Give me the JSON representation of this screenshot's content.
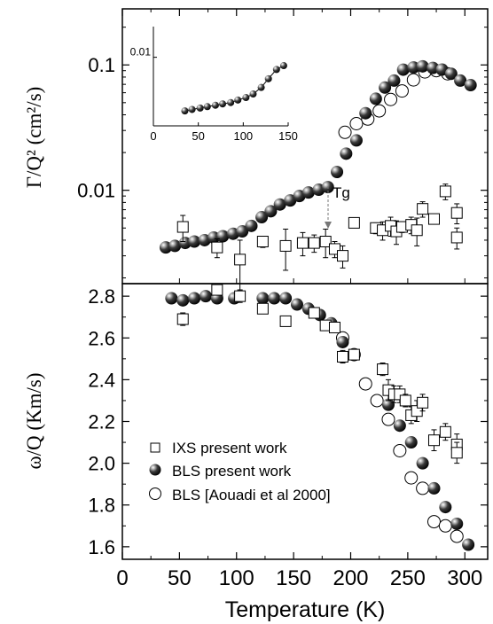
{
  "chart_data": [
    {
      "type": "scatter",
      "panel": "top",
      "ylabel": "Γ/Q² (cm²/s)",
      "yscale": "log",
      "ylim": [
        0.0018,
        0.28
      ],
      "xlim": [
        0,
        320
      ],
      "yticks": [
        0.01,
        0.1
      ],
      "ytick_labels": [
        "0.01",
        "0.1"
      ],
      "annotations": [
        {
          "text": "Tg",
          "x": 180,
          "y": 0.009
        }
      ],
      "series": [
        {
          "name": "IXS present work",
          "marker": "open-square",
          "x": [
            53,
            83,
            103,
            123,
            143,
            158,
            168,
            178,
            186,
            193,
            203,
            222,
            228,
            235,
            240,
            245,
            253,
            258,
            263,
            273,
            283,
            293,
            293
          ],
          "y": [
            0.0051,
            0.0035,
            0.0028,
            0.0039,
            0.0036,
            0.0038,
            0.0038,
            0.0039,
            0.0034,
            0.003,
            0.0055,
            0.005,
            0.0048,
            0.0052,
            0.0047,
            0.0051,
            0.0053,
            0.0048,
            0.0071,
            0.0059,
            0.0098,
            0.0066,
            0.0042
          ],
          "err": [
            0.0012,
            0.0006,
            0.0012,
            0.0004,
            0.0013,
            0.0008,
            0.0006,
            0.001,
            0.0005,
            0.0006,
            0.0003,
            0.0005,
            0.0008,
            0.0009,
            0.001,
            0.0005,
            0.0008,
            0.0012,
            0.001,
            0.0003,
            0.0014,
            0.0012,
            0.0008
          ]
        },
        {
          "name": "BLS present work",
          "marker": "filled-sphere",
          "x": [
            38,
            46,
            55,
            63,
            72,
            80,
            88,
            97,
            105,
            113,
            122,
            130,
            138,
            147,
            155,
            163,
            172,
            180,
            188,
            196,
            205,
            213,
            222,
            230,
            238,
            246,
            255,
            263,
            272,
            280,
            288,
            296,
            305
          ],
          "y": [
            0.0035,
            0.0036,
            0.0038,
            0.0039,
            0.004,
            0.0042,
            0.0043,
            0.0045,
            0.0047,
            0.0052,
            0.0061,
            0.0068,
            0.0077,
            0.0083,
            0.009,
            0.0096,
            0.0101,
            0.0106,
            0.014,
            0.0196,
            0.025,
            0.0412,
            0.0537,
            0.066,
            0.075,
            0.0917,
            0.0955,
            0.0974,
            0.0946,
            0.0918,
            0.085,
            0.075,
            0.069
          ]
        },
        {
          "name": "BLS [Aouadi et al 2000]",
          "marker": "open-circle",
          "x": [
            195,
            205,
            215,
            225,
            235,
            245,
            255,
            265,
            275,
            285
          ],
          "y": [
            0.029,
            0.034,
            0.037,
            0.043,
            0.053,
            0.062,
            0.076,
            0.088,
            0.09,
            0.085
          ]
        }
      ]
    },
    {
      "type": "line",
      "panel": "inset",
      "xlim": [
        0,
        150
      ],
      "xticks": [
        0,
        50,
        100,
        150
      ],
      "xtick_labels": [
        "0",
        "50",
        "100",
        "150"
      ],
      "yscale": "log",
      "ytick_labels": [
        "0.01"
      ],
      "series": [
        {
          "marker": "filled-sphere",
          "x": [
            35,
            43,
            52,
            60,
            69,
            77,
            86,
            94,
            103,
            111,
            120,
            128,
            137,
            145
          ],
          "y": [
            0.0044,
            0.0045,
            0.0046,
            0.0047,
            0.0048,
            0.0049,
            0.005,
            0.0052,
            0.0054,
            0.0057,
            0.0063,
            0.0072,
            0.0083,
            0.0088
          ]
        }
      ]
    },
    {
      "type": "scatter",
      "panel": "bottom",
      "xlabel": "Temperature (K)",
      "ylabel": "ω/Q (Km/s)",
      "xlim": [
        0,
        320
      ],
      "ylim": [
        1.54,
        2.86
      ],
      "xticks": [
        0,
        50,
        100,
        150,
        200,
        250,
        300
      ],
      "xtick_labels": [
        "0",
        "50",
        "100",
        "150",
        "200",
        "250",
        "300"
      ],
      "yticks": [
        1.6,
        1.8,
        2.0,
        2.2,
        2.4,
        2.6,
        2.8
      ],
      "ytick_labels": [
        "1.6",
        "1.8",
        "2.0",
        "2.2",
        "2.4",
        "2.6",
        "2.8"
      ],
      "legend": {
        "placement": "lower-left",
        "entries": [
          "IXS present work",
          "BLS present work",
          "BLS [Aouadi et al 2000]"
        ]
      },
      "series": [
        {
          "name": "IXS present work",
          "marker": "open-square",
          "x": [
            53,
            83,
            103,
            123,
            143,
            168,
            178,
            186,
            193,
            203,
            228,
            233,
            238,
            243,
            248,
            253,
            258,
            263,
            273,
            283,
            293,
            293
          ],
          "y": [
            2.69,
            2.83,
            2.8,
            2.74,
            2.68,
            2.72,
            2.66,
            2.65,
            2.51,
            2.52,
            2.45,
            2.35,
            2.33,
            2.33,
            2.3,
            2.23,
            2.25,
            2.29,
            2.11,
            2.15,
            2.09,
            2.05
          ],
          "err": [
            0.03,
            0.02,
            0.03,
            0.02,
            0.02,
            0.02,
            0.02,
            0.02,
            0.03,
            0.02,
            0.03,
            0.05,
            0.04,
            0.04,
            0.03,
            0.04,
            0.05,
            0.04,
            0.05,
            0.04,
            0.05,
            0.05
          ]
        },
        {
          "name": "BLS present work",
          "marker": "filled-sphere",
          "x": [
            43,
            53,
            63,
            73,
            83,
            98,
            123,
            133,
            143,
            153,
            163,
            173,
            183,
            193,
            233,
            243,
            253,
            263,
            273,
            283,
            293,
            303
          ],
          "y": [
            2.79,
            2.78,
            2.79,
            2.8,
            2.79,
            2.79,
            2.79,
            2.79,
            2.79,
            2.76,
            2.74,
            2.71,
            2.67,
            2.58,
            2.28,
            2.18,
            2.1,
            2.0,
            1.88,
            1.79,
            1.71,
            1.61
          ]
        },
        {
          "name": "BLS [Aouadi et al 2000]",
          "marker": "open-circle",
          "x": [
            193,
            203,
            213,
            223,
            233,
            243,
            253,
            263,
            273,
            283,
            293
          ],
          "y": [
            2.6,
            2.52,
            2.38,
            2.3,
            2.21,
            2.06,
            1.93,
            1.88,
            1.72,
            1.7,
            1.65
          ]
        }
      ]
    }
  ]
}
